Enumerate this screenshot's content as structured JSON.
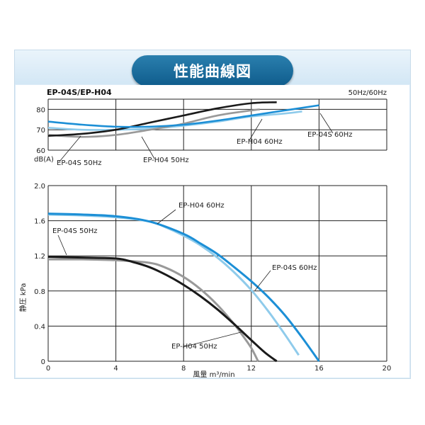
{
  "page": {
    "heading": "性能曲線図"
  },
  "chart_data": {
    "type": "line",
    "title": "EP-04S/EP-H04",
    "freq_note": "50Hz/60Hz",
    "xlabel": "風量 m³/min",
    "x_ticks": [
      "0",
      "4",
      "8",
      "12",
      "16",
      "20"
    ],
    "xlim": [
      0,
      20
    ],
    "noise_panel": {
      "ylabel": "dB(A)",
      "ylim": [
        60,
        85
      ],
      "y_ticks": [
        "60",
        "70",
        "80"
      ],
      "series": [
        {
          "name": "EP-04S 50Hz",
          "color": "#8fcbeb",
          "x": [
            0,
            2,
            4,
            6,
            8,
            10,
            12,
            14,
            15
          ],
          "y": [
            71,
            70,
            70,
            70.5,
            72,
            74,
            76.5,
            78,
            79
          ]
        },
        {
          "name": "EP-H04 50Hz",
          "color": "#999999",
          "x": [
            0,
            2,
            4,
            6,
            8,
            10,
            12,
            12.5
          ],
          "y": [
            67.5,
            66.5,
            67.5,
            70,
            73,
            77,
            79.5,
            80
          ]
        },
        {
          "name": "EP-H04 60Hz",
          "color": "#1a1a1a",
          "x": [
            0,
            2,
            4,
            6,
            8,
            10,
            12,
            13.5
          ],
          "y": [
            67,
            68,
            70,
            73.5,
            77,
            80.5,
            83,
            83.5
          ]
        },
        {
          "name": "EP-04S 60Hz",
          "color": "#1c8fd6",
          "x": [
            0,
            2,
            4,
            6,
            8,
            10,
            12,
            14,
            16
          ],
          "y": [
            74,
            72.5,
            71.5,
            71.5,
            72.5,
            74.5,
            77,
            79.5,
            82
          ]
        }
      ]
    },
    "pressure_panel": {
      "ylabel": "静圧 kPa",
      "ylim": [
        0,
        2.0
      ],
      "y_ticks": [
        "0",
        "0.4",
        "0.8",
        "1.2",
        "1.6",
        "2.0"
      ],
      "series": [
        {
          "name": "EP-04S 50Hz",
          "color": "#999999",
          "x": [
            0,
            2,
            4,
            6,
            7,
            8,
            9,
            10,
            11,
            11.5,
            12,
            12.4
          ],
          "y": [
            1.16,
            1.16,
            1.15,
            1.12,
            1.06,
            0.96,
            0.82,
            0.64,
            0.42,
            0.29,
            0.15,
            0
          ]
        },
        {
          "name": "EP-H04 50Hz",
          "color": "#1a1a1a",
          "x": [
            0,
            2,
            4,
            5,
            6,
            7,
            8,
            9,
            10,
            11,
            12,
            12.8,
            13.5
          ],
          "y": [
            1.19,
            1.18,
            1.17,
            1.13,
            1.07,
            0.98,
            0.87,
            0.74,
            0.59,
            0.42,
            0.24,
            0.1,
            0
          ]
        },
        {
          "name": "EP-H04 60Hz",
          "color": "#8fcbeb",
          "x": [
            0,
            2,
            4,
            6,
            7,
            8,
            9,
            10,
            11,
            12,
            13,
            14,
            14.8
          ],
          "y": [
            1.67,
            1.66,
            1.64,
            1.59,
            1.52,
            1.43,
            1.32,
            1.18,
            1.01,
            0.81,
            0.57,
            0.3,
            0.07
          ]
        },
        {
          "name": "EP-04S 60Hz",
          "color": "#1c8fd6",
          "x": [
            0,
            2,
            4,
            6,
            8,
            9,
            10,
            11,
            12,
            13,
            14,
            15,
            16
          ],
          "y": [
            1.68,
            1.67,
            1.65,
            1.59,
            1.45,
            1.34,
            1.22,
            1.07,
            0.91,
            0.73,
            0.52,
            0.27,
            0
          ]
        }
      ]
    },
    "annotations": {
      "noise": [
        "EP-04S 50Hz",
        "EP-H04 50Hz",
        "EP-H04 60Hz",
        "EP-04S 60Hz"
      ],
      "pressure": [
        "EP-H04 60Hz",
        "EP-04S 50Hz",
        "EP-04S 60Hz",
        "EP-H04 50Hz"
      ]
    }
  }
}
